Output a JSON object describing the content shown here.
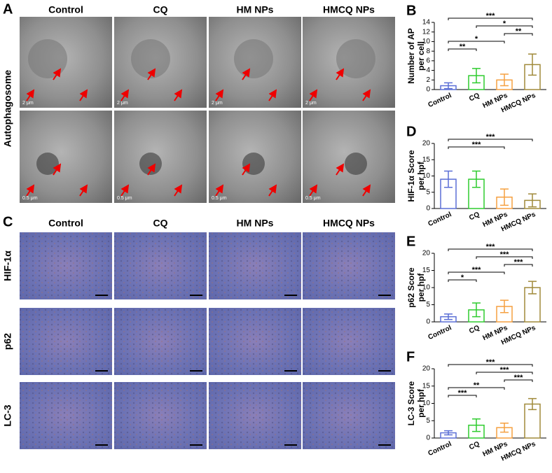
{
  "panels": {
    "A": {
      "label": "A",
      "columns": [
        "Control",
        "CQ",
        "HM NPs",
        "HMCQ NPs"
      ],
      "row_label": "Autophagosome",
      "scale_top": "2 μm",
      "scale_bottom": "0.5 μm"
    },
    "C": {
      "label": "C",
      "columns": [
        "Control",
        "CQ",
        "HM NPs",
        "HMCQ NPs"
      ],
      "rows": [
        "HIF-1α",
        "p62",
        "LC-3"
      ]
    }
  },
  "chart_data": [
    {
      "type": "bar",
      "label": "B",
      "ylabel": [
        "Number of AP",
        "per cell"
      ],
      "categories": [
        "Control",
        "CQ",
        "HM NPs",
        "HMCQ NPs"
      ],
      "colors": [
        "#5b6fd6",
        "#2fcc2f",
        "#f5a040",
        "#a08a3a"
      ],
      "values": [
        0.8,
        2.9,
        2.0,
        5.2
      ],
      "errors": [
        0.6,
        1.5,
        1.2,
        2.2
      ],
      "ylim": [
        0,
        14
      ],
      "yticks": [
        0,
        2,
        4,
        6,
        8,
        10,
        12,
        14
      ],
      "comparisons": [
        {
          "from": 0,
          "to": 3,
          "label": "***"
        },
        {
          "from": 1,
          "to": 3,
          "label": "*"
        },
        {
          "from": 2,
          "to": 3,
          "label": "**"
        },
        {
          "from": 0,
          "to": 2,
          "label": "*"
        },
        {
          "from": 0,
          "to": 1,
          "label": "**"
        }
      ]
    },
    {
      "type": "bar",
      "label": "D",
      "ylabel": [
        "HIF-1α Score",
        "per hpf"
      ],
      "categories": [
        "Control",
        "CQ",
        "HM NPs",
        "HMCQ NPs"
      ],
      "colors": [
        "#5b6fd6",
        "#2fcc2f",
        "#f5a040",
        "#a08a3a"
      ],
      "values": [
        9.0,
        9.0,
        3.5,
        2.5
      ],
      "errors": [
        2.5,
        2.5,
        2.5,
        2.0
      ],
      "ylim": [
        0,
        20
      ],
      "yticks": [
        0,
        5,
        10,
        15,
        20
      ],
      "comparisons": [
        {
          "from": 0,
          "to": 3,
          "label": "***"
        },
        {
          "from": 0,
          "to": 2,
          "label": "***"
        }
      ]
    },
    {
      "type": "bar",
      "label": "E",
      "ylabel": [
        "p62 Score",
        "per hpf"
      ],
      "categories": [
        "Control",
        "CQ",
        "HM NPs",
        "HMCQ NPs"
      ],
      "colors": [
        "#5b6fd6",
        "#2fcc2f",
        "#f5a040",
        "#a08a3a"
      ],
      "values": [
        1.5,
        3.5,
        4.5,
        10.0
      ],
      "errors": [
        0.8,
        2.0,
        1.8,
        1.8
      ],
      "ylim": [
        0,
        20
      ],
      "yticks": [
        0,
        5,
        10,
        15,
        20
      ],
      "comparisons": [
        {
          "from": 0,
          "to": 3,
          "label": "***"
        },
        {
          "from": 1,
          "to": 3,
          "label": "***"
        },
        {
          "from": 2,
          "to": 3,
          "label": "***"
        },
        {
          "from": 0,
          "to": 2,
          "label": "***"
        },
        {
          "from": 0,
          "to": 1,
          "label": "*"
        }
      ]
    },
    {
      "type": "bar",
      "label": "F",
      "ylabel": [
        "LC-3 Score",
        "per hpf"
      ],
      "categories": [
        "Control",
        "CQ",
        "HM NPs",
        "HMCQ NPs"
      ],
      "colors": [
        "#5b6fd6",
        "#2fcc2f",
        "#f5a040",
        "#a08a3a"
      ],
      "values": [
        1.5,
        3.7,
        3.0,
        9.8
      ],
      "errors": [
        0.6,
        1.8,
        1.3,
        1.6
      ],
      "ylim": [
        0,
        20
      ],
      "yticks": [
        0,
        5,
        10,
        15,
        20
      ],
      "comparisons": [
        {
          "from": 0,
          "to": 3,
          "label": "***"
        },
        {
          "from": 1,
          "to": 3,
          "label": "***"
        },
        {
          "from": 2,
          "to": 3,
          "label": "***"
        },
        {
          "from": 0,
          "to": 2,
          "label": "**"
        },
        {
          "from": 0,
          "to": 1,
          "label": "***"
        }
      ]
    }
  ]
}
